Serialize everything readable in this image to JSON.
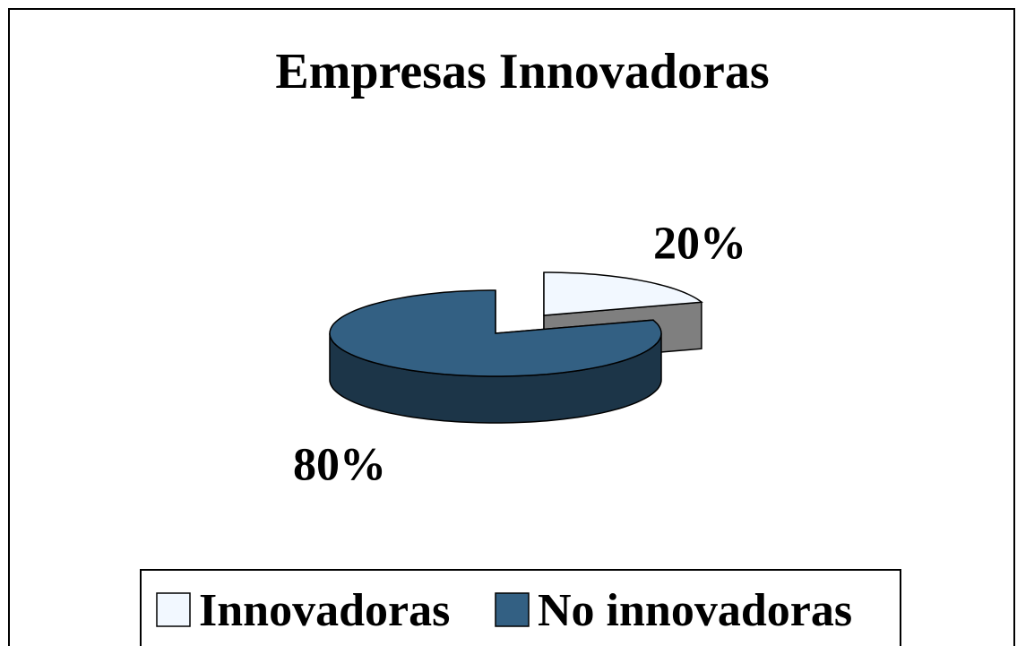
{
  "chart_data": {
    "type": "pie",
    "title": "Empresas Innovadoras",
    "categories": [
      "Innovadoras",
      "No innovadoras"
    ],
    "values": [
      20,
      80
    ],
    "value_labels": [
      "20%",
      "80%"
    ],
    "colors": [
      "#f2f8ff",
      "#336083"
    ]
  }
}
